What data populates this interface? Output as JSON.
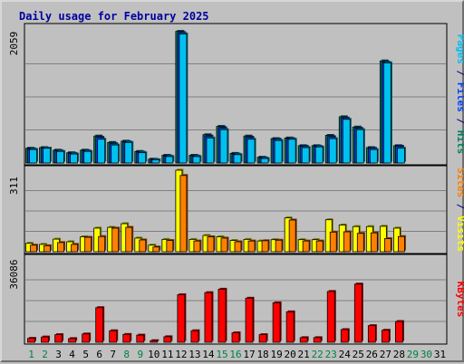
{
  "chart_data": {
    "type": "bar",
    "title": "Daily usage for February 2025",
    "categories": [
      "1",
      "2",
      "3",
      "4",
      "5",
      "6",
      "7",
      "8",
      "9",
      "10",
      "11",
      "12",
      "13",
      "14",
      "15",
      "16",
      "17",
      "18",
      "19",
      "20",
      "21",
      "22",
      "23",
      "24",
      "25",
      "26",
      "27",
      "28",
      "29",
      "30",
      "31"
    ],
    "weekend_days": [
      1,
      2,
      8,
      9,
      15,
      16,
      22,
      23,
      29,
      30
    ],
    "grid": true,
    "panels": [
      {
        "name": "hits_files_pages",
        "ymax_label": "2059",
        "ymax": 2059,
        "axis_label_parts": [
          {
            "text": "Pages",
            "color": "#00c0f0"
          },
          {
            "text": " / ",
            "color": "#000080"
          },
          {
            "text": "Files",
            "color": "#0040ff"
          },
          {
            "text": " / ",
            "color": "#000080"
          },
          {
            "text": "Hits",
            "color": "#00805c"
          }
        ],
        "series": [
          {
            "name": "Hits",
            "color": "#00805c",
            "values": [
              230,
              240,
              200,
              160,
              200,
              420,
              320,
              340,
              180,
              60,
              120,
              2050,
              120,
              440,
              570,
              150,
              420,
              90,
              380,
              390,
              270,
              270,
              430,
              720,
              560,
              240,
              1590,
              270,
              0,
              0,
              0
            ]
          },
          {
            "name": "Files",
            "color": "#0040ff",
            "values": [
              220,
              230,
              190,
              150,
              190,
              400,
              300,
              330,
              170,
              55,
              110,
              2030,
              110,
              420,
              550,
              140,
              400,
              80,
              370,
              380,
              260,
              260,
              410,
              700,
              540,
              230,
              1570,
              260,
              0,
              0,
              0
            ]
          },
          {
            "name": "Pages",
            "color": "#00c0f0",
            "values": [
              210,
              230,
              180,
              140,
              180,
              370,
              280,
              320,
              160,
              50,
              100,
              2010,
              100,
              390,
              520,
              130,
              370,
              70,
              350,
              370,
              240,
              250,
              380,
              680,
              520,
              210,
              1560,
              230,
              0,
              0,
              0
            ]
          }
        ]
      },
      {
        "name": "visits_sites",
        "ymax_label": "311",
        "ymax": 311,
        "axis_label_parts": [
          {
            "text": "Sites",
            "color": "#ff8000"
          },
          {
            "text": " / ",
            "color": "#000080"
          },
          {
            "text": "Visits",
            "color": "#ffff00"
          }
        ],
        "series": [
          {
            "name": "Visits",
            "color": "#ffff00",
            "values": [
              32,
              28,
              48,
              38,
              57,
              90,
              93,
              107,
              52,
              25,
              47,
              311,
              47,
              62,
              57,
              43,
              47,
              41,
              46,
              129,
              46,
              46,
              122,
              102,
              96,
              96,
              97,
              90,
              0,
              0,
              0
            ]
          },
          {
            "name": "Sites",
            "color": "#ff8000",
            "values": [
              25,
              23,
              35,
              28,
              55,
              58,
              90,
              93,
              45,
              18,
              43,
              291,
              41,
              57,
              52,
              38,
              41,
              42,
              44,
              121,
              41,
              41,
              75,
              76,
              70,
              72,
              50,
              58,
              0,
              0,
              0
            ]
          }
        ]
      },
      {
        "name": "kbytes",
        "ymax_label": "36086",
        "ymax": 36086,
        "axis_label_parts": [
          {
            "text": "KBytes",
            "color": "#ff0000"
          }
        ],
        "series": [
          {
            "name": "KBytes",
            "color": "#ff0000",
            "values": [
              1700,
              2300,
              3300,
              1600,
              3600,
              15000,
              5000,
              3400,
              3100,
              700,
              2400,
              20600,
              5000,
              21500,
              23000,
              4100,
              19100,
              3300,
              17100,
              13200,
              2000,
              2000,
              22000,
              5500,
              25200,
              7200,
              5200,
              9000,
              0,
              0,
              0
            ]
          }
        ]
      }
    ]
  }
}
